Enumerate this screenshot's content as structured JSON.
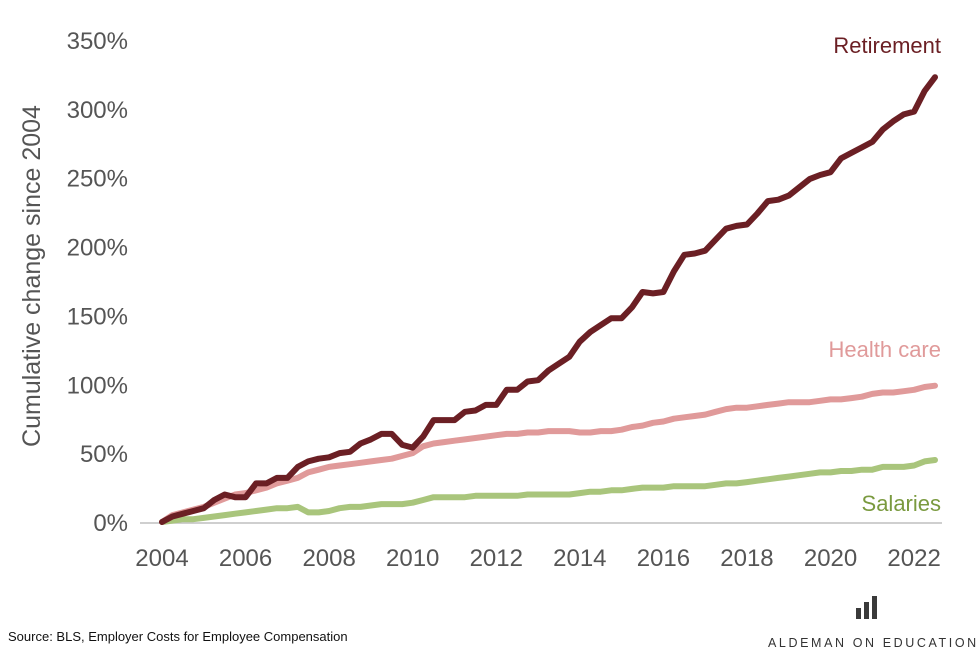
{
  "chart_data": {
    "type": "line",
    "ylabel": "Cumulative change since 2004",
    "xlim": [
      2004,
      2022.5
    ],
    "ylim": [
      0,
      350
    ],
    "y_tick_format": "percent",
    "x_ticks": [
      2004,
      2006,
      2008,
      2010,
      2012,
      2014,
      2016,
      2018,
      2020,
      2022
    ],
    "y_ticks": [
      0,
      50,
      100,
      150,
      200,
      250,
      300,
      350
    ],
    "grid": false,
    "legend": "labels at series ends",
    "series": [
      {
        "name": "Retirement",
        "color": "#6b1f24",
        "points": [
          [
            2004.0,
            0
          ],
          [
            2004.25,
            4
          ],
          [
            2004.5,
            6
          ],
          [
            2004.75,
            8
          ],
          [
            2005.0,
            10
          ],
          [
            2005.25,
            16
          ],
          [
            2005.5,
            20
          ],
          [
            2005.75,
            18
          ],
          [
            2006.0,
            18
          ],
          [
            2006.25,
            28
          ],
          [
            2006.5,
            28
          ],
          [
            2006.75,
            32
          ],
          [
            2007.0,
            32
          ],
          [
            2007.25,
            40
          ],
          [
            2007.5,
            44
          ],
          [
            2007.75,
            46
          ],
          [
            2008.0,
            47
          ],
          [
            2008.25,
            50
          ],
          [
            2008.5,
            51
          ],
          [
            2008.75,
            57
          ],
          [
            2009.0,
            60
          ],
          [
            2009.25,
            64
          ],
          [
            2009.5,
            64
          ],
          [
            2009.75,
            56
          ],
          [
            2010.0,
            54
          ],
          [
            2010.25,
            62
          ],
          [
            2010.5,
            74
          ],
          [
            2010.75,
            74
          ],
          [
            2011.0,
            74
          ],
          [
            2011.25,
            80
          ],
          [
            2011.5,
            81
          ],
          [
            2011.75,
            85
          ],
          [
            2012.0,
            85
          ],
          [
            2012.25,
            96
          ],
          [
            2012.5,
            96
          ],
          [
            2012.75,
            102
          ],
          [
            2013.0,
            103
          ],
          [
            2013.25,
            110
          ],
          [
            2013.5,
            115
          ],
          [
            2013.75,
            120
          ],
          [
            2014.0,
            131
          ],
          [
            2014.25,
            138
          ],
          [
            2014.5,
            143
          ],
          [
            2014.75,
            148
          ],
          [
            2015.0,
            148
          ],
          [
            2015.25,
            156
          ],
          [
            2015.5,
            167
          ],
          [
            2015.75,
            166
          ],
          [
            2016.0,
            167
          ],
          [
            2016.25,
            182
          ],
          [
            2016.5,
            194
          ],
          [
            2016.75,
            195
          ],
          [
            2017.0,
            197
          ],
          [
            2017.25,
            205
          ],
          [
            2017.5,
            213
          ],
          [
            2017.75,
            215
          ],
          [
            2018.0,
            216
          ],
          [
            2018.25,
            224
          ],
          [
            2018.5,
            233
          ],
          [
            2018.75,
            234
          ],
          [
            2019.0,
            237
          ],
          [
            2019.25,
            243
          ],
          [
            2019.5,
            249
          ],
          [
            2019.75,
            252
          ],
          [
            2020.0,
            254
          ],
          [
            2020.25,
            264
          ],
          [
            2020.5,
            268
          ],
          [
            2020.75,
            272
          ],
          [
            2021.0,
            276
          ],
          [
            2021.25,
            285
          ],
          [
            2021.5,
            291
          ],
          [
            2021.75,
            296
          ],
          [
            2022.0,
            298
          ],
          [
            2022.25,
            313
          ],
          [
            2022.5,
            323
          ]
        ]
      },
      {
        "name": "Health care",
        "color": "#e09a9a",
        "points": [
          [
            2004.0,
            0
          ],
          [
            2004.25,
            5
          ],
          [
            2004.5,
            7
          ],
          [
            2004.75,
            9
          ],
          [
            2005.0,
            11
          ],
          [
            2005.25,
            14
          ],
          [
            2005.5,
            17
          ],
          [
            2005.75,
            20
          ],
          [
            2006.0,
            21
          ],
          [
            2006.25,
            23
          ],
          [
            2006.5,
            25
          ],
          [
            2006.75,
            28
          ],
          [
            2007.0,
            30
          ],
          [
            2007.25,
            32
          ],
          [
            2007.5,
            36
          ],
          [
            2007.75,
            38
          ],
          [
            2008.0,
            40
          ],
          [
            2008.25,
            41
          ],
          [
            2008.5,
            42
          ],
          [
            2008.75,
            43
          ],
          [
            2009.0,
            44
          ],
          [
            2009.25,
            45
          ],
          [
            2009.5,
            46
          ],
          [
            2009.75,
            48
          ],
          [
            2010.0,
            50
          ],
          [
            2010.25,
            55
          ],
          [
            2010.5,
            57
          ],
          [
            2010.75,
            58
          ],
          [
            2011.0,
            59
          ],
          [
            2011.25,
            60
          ],
          [
            2011.5,
            61
          ],
          [
            2011.75,
            62
          ],
          [
            2012.0,
            63
          ],
          [
            2012.25,
            64
          ],
          [
            2012.5,
            64
          ],
          [
            2012.75,
            65
          ],
          [
            2013.0,
            65
          ],
          [
            2013.25,
            66
          ],
          [
            2013.5,
            66
          ],
          [
            2013.75,
            66
          ],
          [
            2014.0,
            65
          ],
          [
            2014.25,
            65
          ],
          [
            2014.5,
            66
          ],
          [
            2014.75,
            66
          ],
          [
            2015.0,
            67
          ],
          [
            2015.25,
            69
          ],
          [
            2015.5,
            70
          ],
          [
            2015.75,
            72
          ],
          [
            2016.0,
            73
          ],
          [
            2016.25,
            75
          ],
          [
            2016.5,
            76
          ],
          [
            2016.75,
            77
          ],
          [
            2017.0,
            78
          ],
          [
            2017.25,
            80
          ],
          [
            2017.5,
            82
          ],
          [
            2017.75,
            83
          ],
          [
            2018.0,
            83
          ],
          [
            2018.25,
            84
          ],
          [
            2018.5,
            85
          ],
          [
            2018.75,
            86
          ],
          [
            2019.0,
            87
          ],
          [
            2019.25,
            87
          ],
          [
            2019.5,
            87
          ],
          [
            2019.75,
            88
          ],
          [
            2020.0,
            89
          ],
          [
            2020.25,
            89
          ],
          [
            2020.5,
            90
          ],
          [
            2020.75,
            91
          ],
          [
            2021.0,
            93
          ],
          [
            2021.25,
            94
          ],
          [
            2021.5,
            94
          ],
          [
            2021.75,
            95
          ],
          [
            2022.0,
            96
          ],
          [
            2022.25,
            98
          ],
          [
            2022.5,
            99
          ]
        ]
      },
      {
        "name": "Salaries",
        "color": "#a9c57c",
        "points": [
          [
            2004.0,
            0
          ],
          [
            2004.25,
            1
          ],
          [
            2004.5,
            2
          ],
          [
            2004.75,
            2
          ],
          [
            2005.0,
            3
          ],
          [
            2005.25,
            4
          ],
          [
            2005.5,
            5
          ],
          [
            2005.75,
            6
          ],
          [
            2006.0,
            7
          ],
          [
            2006.25,
            8
          ],
          [
            2006.5,
            9
          ],
          [
            2006.75,
            10
          ],
          [
            2007.0,
            10
          ],
          [
            2007.25,
            11
          ],
          [
            2007.5,
            7
          ],
          [
            2007.75,
            7
          ],
          [
            2008.0,
            8
          ],
          [
            2008.25,
            10
          ],
          [
            2008.5,
            11
          ],
          [
            2008.75,
            11
          ],
          [
            2009.0,
            12
          ],
          [
            2009.25,
            13
          ],
          [
            2009.5,
            13
          ],
          [
            2009.75,
            13
          ],
          [
            2010.0,
            14
          ],
          [
            2010.25,
            16
          ],
          [
            2010.5,
            18
          ],
          [
            2010.75,
            18
          ],
          [
            2011.0,
            18
          ],
          [
            2011.25,
            18
          ],
          [
            2011.5,
            19
          ],
          [
            2011.75,
            19
          ],
          [
            2012.0,
            19
          ],
          [
            2012.25,
            19
          ],
          [
            2012.5,
            19
          ],
          [
            2012.75,
            20
          ],
          [
            2013.0,
            20
          ],
          [
            2013.25,
            20
          ],
          [
            2013.5,
            20
          ],
          [
            2013.75,
            20
          ],
          [
            2014.0,
            21
          ],
          [
            2014.25,
            22
          ],
          [
            2014.5,
            22
          ],
          [
            2014.75,
            23
          ],
          [
            2015.0,
            23
          ],
          [
            2015.25,
            24
          ],
          [
            2015.5,
            25
          ],
          [
            2015.75,
            25
          ],
          [
            2016.0,
            25
          ],
          [
            2016.25,
            26
          ],
          [
            2016.5,
            26
          ],
          [
            2016.75,
            26
          ],
          [
            2017.0,
            26
          ],
          [
            2017.25,
            27
          ],
          [
            2017.5,
            28
          ],
          [
            2017.75,
            28
          ],
          [
            2018.0,
            29
          ],
          [
            2018.25,
            30
          ],
          [
            2018.5,
            31
          ],
          [
            2018.75,
            32
          ],
          [
            2019.0,
            33
          ],
          [
            2019.25,
            34
          ],
          [
            2019.5,
            35
          ],
          [
            2019.75,
            36
          ],
          [
            2020.0,
            36
          ],
          [
            2020.25,
            37
          ],
          [
            2020.5,
            37
          ],
          [
            2020.75,
            38
          ],
          [
            2021.0,
            38
          ],
          [
            2021.25,
            40
          ],
          [
            2021.5,
            40
          ],
          [
            2021.75,
            40
          ],
          [
            2022.0,
            41
          ],
          [
            2022.25,
            44
          ],
          [
            2022.5,
            45
          ]
        ]
      }
    ]
  },
  "footer": {
    "source": "Source: BLS, Employer Costs for Employee Compensation",
    "brand": "ALDEMAN ON EDUCATION",
    "logo_icon": "bar-chart-logo-icon",
    "logo_color": "#3a3a3a"
  }
}
